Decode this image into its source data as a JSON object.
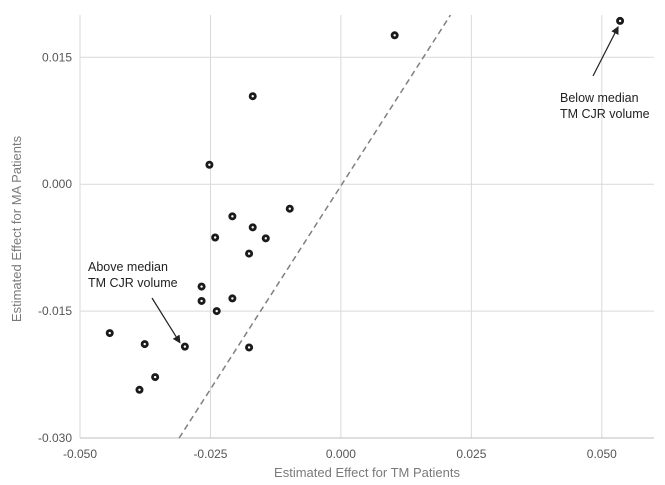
{
  "chart_data": {
    "type": "scatter",
    "title": "",
    "xlabel": "Estimated Effect for TM Patients",
    "ylabel": "Estimated Effect for MA Patients",
    "xlim": [
      -0.05,
      0.06
    ],
    "ylim": [
      -0.03,
      0.02
    ],
    "xticks": [
      -0.05,
      -0.025,
      0.0,
      0.025,
      0.05
    ],
    "xtick_labels": [
      "-0.050",
      "-0.025",
      "0.000",
      "0.025",
      "0.050"
    ],
    "yticks": [
      -0.03,
      -0.015,
      0.0,
      0.015
    ],
    "ytick_labels": [
      "-0.030",
      "-0.015",
      "0.000",
      "0.015"
    ],
    "grid": true,
    "points": [
      {
        "x": 0.0535,
        "y": 0.0193
      },
      {
        "x": 0.0103,
        "y": 0.0176
      },
      {
        "x": -0.0169,
        "y": 0.0104
      },
      {
        "x": -0.0252,
        "y": 0.0023
      },
      {
        "x": -0.0098,
        "y": -0.0029
      },
      {
        "x": -0.0208,
        "y": -0.0038
      },
      {
        "x": -0.0169,
        "y": -0.0051
      },
      {
        "x": -0.0241,
        "y": -0.0063
      },
      {
        "x": -0.0144,
        "y": -0.0064
      },
      {
        "x": -0.0176,
        "y": -0.0082
      },
      {
        "x": -0.0267,
        "y": -0.0121
      },
      {
        "x": -0.0267,
        "y": -0.0138
      },
      {
        "x": -0.0208,
        "y": -0.0135
      },
      {
        "x": -0.0238,
        "y": -0.015
      },
      {
        "x": -0.0443,
        "y": -0.0176
      },
      {
        "x": -0.0376,
        "y": -0.0189
      },
      {
        "x": -0.0299,
        "y": -0.0192
      },
      {
        "x": -0.0176,
        "y": -0.0193
      },
      {
        "x": -0.0356,
        "y": -0.0228
      },
      {
        "x": -0.0386,
        "y": -0.0243
      }
    ],
    "reference_line": {
      "style": "dashed",
      "from": [
        -0.031,
        -0.03
      ],
      "to": [
        0.021,
        0.02
      ]
    },
    "annotations": [
      {
        "lines": [
          "Below median",
          "TM CJR volume"
        ],
        "arrow_to": [
          0.0535,
          0.0193
        ]
      },
      {
        "lines": [
          "Above median",
          "TM CJR volume"
        ],
        "arrow_to": [
          -0.0299,
          -0.0192
        ]
      }
    ]
  }
}
